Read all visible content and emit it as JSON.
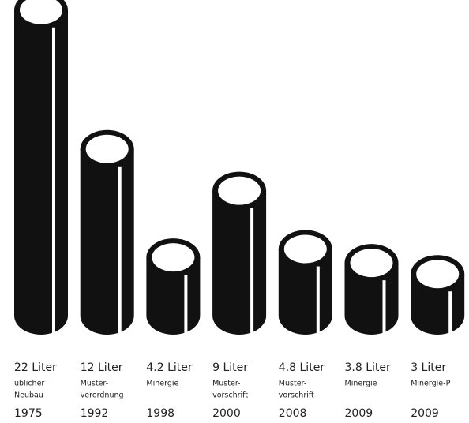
{
  "chart_data": {
    "type": "bar",
    "categories": [
      "1975",
      "1992",
      "1998",
      "2000",
      "2008",
      "2009",
      "2009"
    ],
    "descriptions": [
      [
        "üblicher",
        "Neubau"
      ],
      [
        "Muster-",
        "verordnung"
      ],
      [
        "Minergie"
      ],
      [
        "Muster-",
        "vorschrift"
      ],
      [
        "Muster-",
        "vorschrift"
      ],
      [
        "Minergie"
      ],
      [
        "Minergie-P"
      ]
    ],
    "values": [
      22,
      12,
      4.2,
      9,
      4.8,
      3.8,
      3
    ],
    "value_labels": [
      "22 Liter",
      "12 Liter",
      "4.2 Liter",
      "9 Liter",
      "4.8 Liter",
      "3.8 Liter",
      "3 Liter"
    ],
    "color": "#111111"
  }
}
